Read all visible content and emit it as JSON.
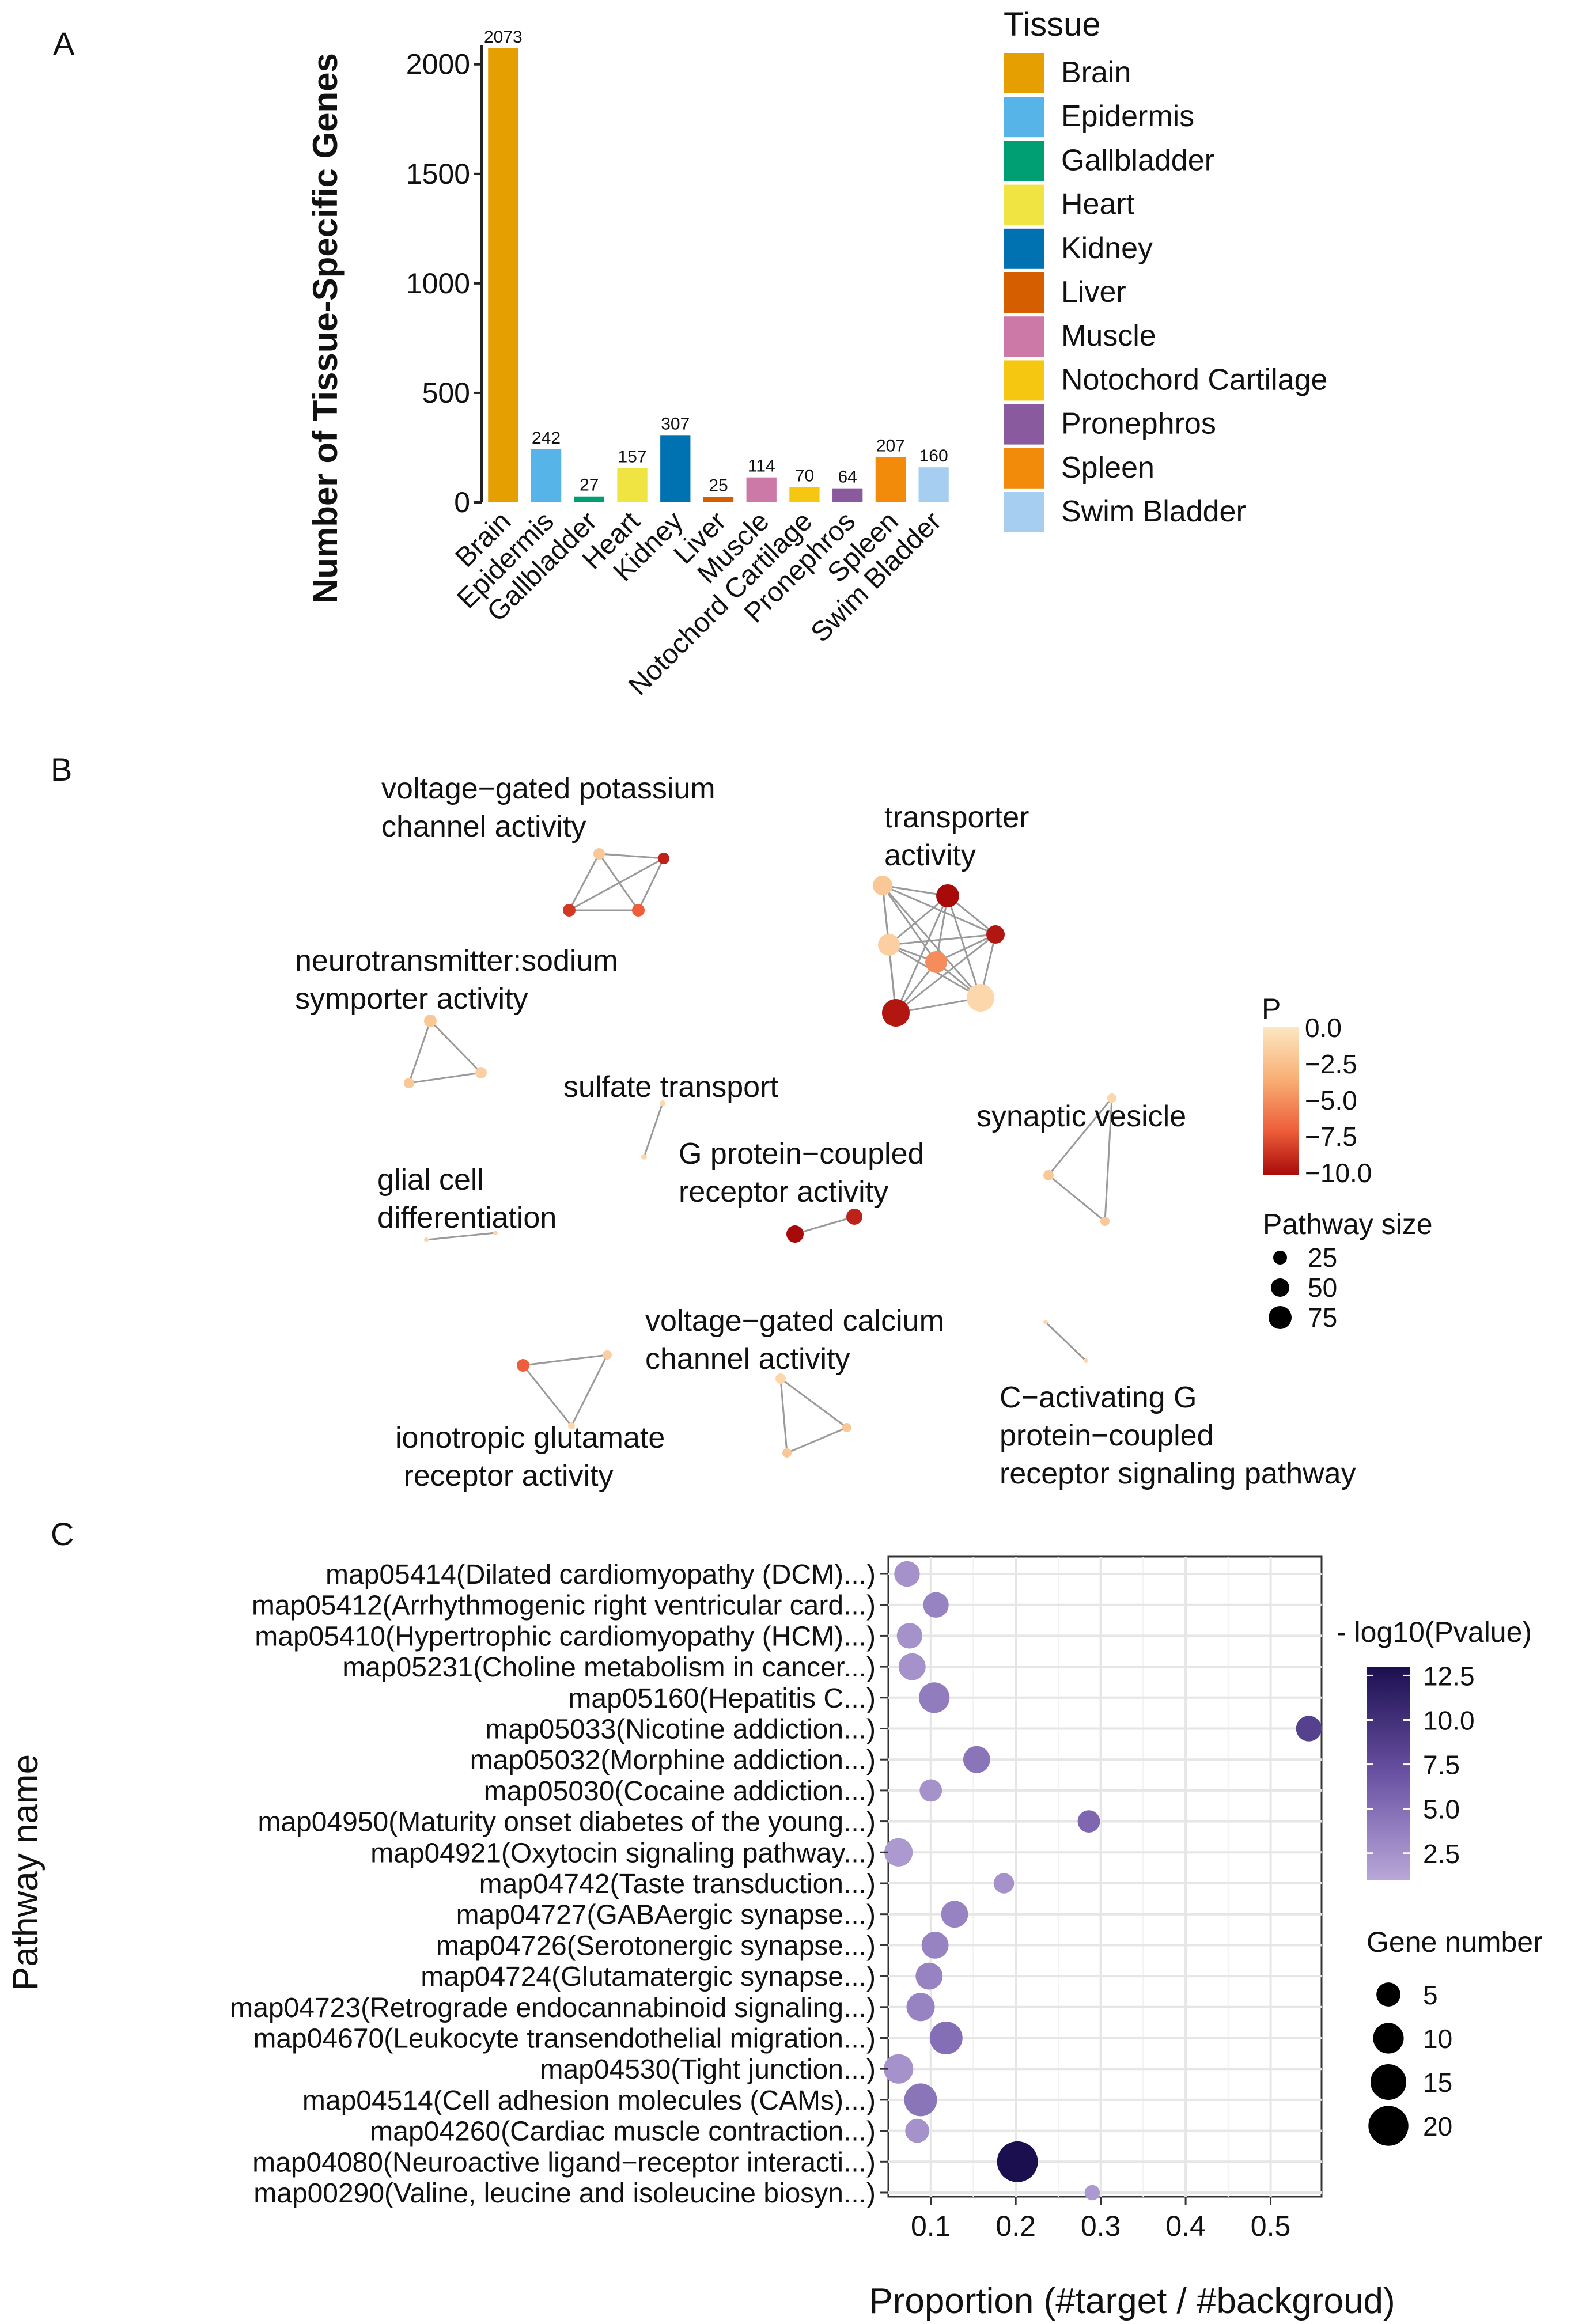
{
  "panels": {
    "a": "A",
    "b": "B",
    "c": "C"
  },
  "chart_data": [
    {
      "type": "bar",
      "panel": "A",
      "ylabel": "Number of Tissue-Specific Genes",
      "ylim": [
        0,
        2073
      ],
      "yticks": [
        0,
        500,
        1000,
        1500,
        2000
      ],
      "categories": [
        "Brain",
        "Epidermis",
        "Gallbladder",
        "Heart",
        "Kidney",
        "Liver",
        "Muscle",
        "Notochord Cartilage",
        "Pronephros",
        "Spleen",
        "Swim Bladder"
      ],
      "values": [
        2073,
        242,
        27,
        157,
        307,
        25,
        114,
        70,
        64,
        207,
        160
      ],
      "colors": [
        "#E69F00",
        "#56B4E9",
        "#009E73",
        "#F0E442",
        "#0072B2",
        "#D55E00",
        "#CC79A7",
        "#F5C710",
        "#8A5A9E",
        "#F28A0A",
        "#A6CEF0"
      ],
      "legend_title": "Tissue",
      "legend_position": "right"
    },
    {
      "type": "network",
      "panel": "B",
      "legend": {
        "color_title": "P",
        "color_ticks": [
          "0.0",
          "−2.5",
          "−5.0",
          "−7.5",
          "−10.0"
        ],
        "color_scale": [
          "#FDE7C3",
          "#F8B074",
          "#EE5E3A",
          "#A80A0A"
        ],
        "size_title": "Pathway size",
        "size_values": [
          25,
          50,
          75
        ]
      },
      "clusters": [
        {
          "label_lines": [
            "voltage−gated potassium",
            "channel activity"
          ],
          "highlight": true
        },
        {
          "label_lines": [
            "transporter",
            "activity"
          ],
          "highlight": true
        },
        {
          "label_lines": [
            "neurotransmitter:sodium",
            "symporter activity"
          ],
          "highlight": false
        },
        {
          "label_lines": [
            "sulfate transport"
          ],
          "highlight": false
        },
        {
          "label_lines": [
            "synaptic vesicle"
          ],
          "highlight": false
        },
        {
          "label_lines": [
            "G protein−coupled",
            "receptor activity"
          ],
          "highlight": true
        },
        {
          "label_lines": [
            "glial cell",
            "differentiation"
          ],
          "highlight": false
        },
        {
          "label_lines": [
            "voltage−gated calcium",
            "channel activity"
          ],
          "highlight": false
        },
        {
          "label_lines": [
            "ionotropic glutamate",
            " receptor activity"
          ],
          "highlight": false
        },
        {
          "label_lines": [
            "C−activating G",
            "protein−coupled",
            "receptor signaling pathway"
          ],
          "highlight": false
        }
      ],
      "nodes": [
        {
          "cluster": 0,
          "p": -2.0,
          "size": 20
        },
        {
          "cluster": 0,
          "p": -9.5,
          "size": 20
        },
        {
          "cluster": 0,
          "p": -7.0,
          "size": 22
        },
        {
          "cluster": 0,
          "p": -8.5,
          "size": 22
        },
        {
          "cluster": 1,
          "p": -2.0,
          "size": 34
        },
        {
          "cluster": 1,
          "p": -10.5,
          "size": 40
        },
        {
          "cluster": 1,
          "p": -10.0,
          "size": 32
        },
        {
          "cluster": 1,
          "p": -1.5,
          "size": 38
        },
        {
          "cluster": 1,
          "p": -5.0,
          "size": 38
        },
        {
          "cluster": 1,
          "p": -1.0,
          "size": 48
        },
        {
          "cluster": 1,
          "p": -10.0,
          "size": 48
        },
        {
          "cluster": 2,
          "p": -2.0,
          "size": 22
        },
        {
          "cluster": 2,
          "p": -1.5,
          "size": 20
        },
        {
          "cluster": 2,
          "p": -2.0,
          "size": 18
        },
        {
          "cluster": 3,
          "p": -1.0,
          "size": 10
        },
        {
          "cluster": 3,
          "p": -1.0,
          "size": 10
        },
        {
          "cluster": 4,
          "p": -1.0,
          "size": 16
        },
        {
          "cluster": 4,
          "p": -2.0,
          "size": 18
        },
        {
          "cluster": 4,
          "p": -2.0,
          "size": 16
        },
        {
          "cluster": 5,
          "p": -10.5,
          "size": 30
        },
        {
          "cluster": 5,
          "p": -9.5,
          "size": 28
        },
        {
          "cluster": 6,
          "p": -1.0,
          "size": 8
        },
        {
          "cluster": 6,
          "p": -1.0,
          "size": 8
        },
        {
          "cluster": 7,
          "p": -1.0,
          "size": 18
        },
        {
          "cluster": 7,
          "p": -2.0,
          "size": 16
        },
        {
          "cluster": 7,
          "p": -2.0,
          "size": 16
        },
        {
          "cluster": 8,
          "p": -7.0,
          "size": 22
        },
        {
          "cluster": 8,
          "p": -1.5,
          "size": 16
        },
        {
          "cluster": 8,
          "p": -1.0,
          "size": 12
        },
        {
          "cluster": 9,
          "p": -1.0,
          "size": 8
        },
        {
          "cluster": 9,
          "p": -1.0,
          "size": 8
        }
      ]
    },
    {
      "type": "scatter",
      "panel": "C",
      "xlabel": "Proportion (#target / #backgroud)",
      "ylabel": "Pathway name",
      "xlim": [
        0.05,
        0.56
      ],
      "xticks": [
        0.1,
        0.2,
        0.3,
        0.4,
        0.5
      ],
      "xticklabels": [
        "0.1",
        "0.2",
        "0.3",
        "0.4",
        "0.5"
      ],
      "color_title": "- log10(Pvalue)",
      "color_ticks": [
        "2.5",
        "5.0",
        "7.5",
        "10.0",
        "12.5"
      ],
      "color_range": [
        1.0,
        13.0
      ],
      "size_title": "Gene number",
      "size_ticks": [
        5,
        10,
        15,
        20
      ],
      "pathways": [
        {
          "name": "map05414(Dilated cardiomyopathy (DCM)...)",
          "x": 0.072,
          "neglogp": 2.5,
          "genes": 6,
          "highlight": false
        },
        {
          "name": "map05412(Arrhythmogenic right ventricular card...)",
          "x": 0.106,
          "neglogp": 3.5,
          "genes": 6,
          "highlight": false
        },
        {
          "name": "map05410(Hypertrophic cardiomyopathy (HCM)...)",
          "x": 0.075,
          "neglogp": 2.5,
          "genes": 6,
          "highlight": false
        },
        {
          "name": "map05231(Choline metabolism in cancer...)",
          "x": 0.078,
          "neglogp": 2.5,
          "genes": 7,
          "highlight": false
        },
        {
          "name": "map05160(Hepatitis C...)",
          "x": 0.104,
          "neglogp": 4.0,
          "genes": 10,
          "highlight": false
        },
        {
          "name": "map05033(Nicotine addiction...)",
          "x": 0.545,
          "neglogp": 8.5,
          "genes": 6,
          "highlight": false
        },
        {
          "name": "map05032(Morphine addiction...)",
          "x": 0.154,
          "neglogp": 4.5,
          "genes": 7,
          "highlight": false
        },
        {
          "name": "map05030(Cocaine addiction...)",
          "x": 0.1,
          "neglogp": 2.5,
          "genes": 4,
          "highlight": false
        },
        {
          "name": "map04950(Maturity onset diabetes of the young...)",
          "x": 0.286,
          "neglogp": 5.5,
          "genes": 4,
          "highlight": false
        },
        {
          "name": "map04921(Oxytocin signaling pathway...)",
          "x": 0.062,
          "neglogp": 2.0,
          "genes": 8,
          "highlight": false
        },
        {
          "name": "map04742(Taste transduction...)",
          "x": 0.186,
          "neglogp": 2.5,
          "genes": 3,
          "highlight": false
        },
        {
          "name": "map04727(GABAergic synapse...)",
          "x": 0.128,
          "neglogp": 3.5,
          "genes": 7,
          "highlight": false
        },
        {
          "name": "map04726(Serotonergic synapse...)",
          "x": 0.105,
          "neglogp": 3.5,
          "genes": 7,
          "highlight": false
        },
        {
          "name": "map04724(Glutamatergic synapse...)",
          "x": 0.098,
          "neglogp": 3.5,
          "genes": 7,
          "highlight": false
        },
        {
          "name": "map04723(Retrograde endocannabinoid signaling...)",
          "x": 0.088,
          "neglogp": 3.5,
          "genes": 8,
          "highlight": false
        },
        {
          "name": "map04670(Leukocyte transendothelial migration...)",
          "x": 0.118,
          "neglogp": 5.0,
          "genes": 12,
          "highlight": true
        },
        {
          "name": "map04530(Tight junction...)",
          "x": 0.062,
          "neglogp": 2.5,
          "genes": 9,
          "highlight": false
        },
        {
          "name": "map04514(Cell adhesion molecules (CAMs)...)",
          "x": 0.088,
          "neglogp": 4.5,
          "genes": 12,
          "highlight": false
        },
        {
          "name": "map04260(Cardiac muscle contraction...)",
          "x": 0.084,
          "neglogp": 2.5,
          "genes": 5,
          "highlight": false
        },
        {
          "name": "map04080(Neuroactive ligand−receptor interacti...)",
          "x": 0.202,
          "neglogp": 13.0,
          "genes": 21,
          "highlight": true
        },
        {
          "name": "map00290(Valine, leucine and isoleucine biosyn...)",
          "x": 0.29,
          "neglogp": 2.0,
          "genes": 1,
          "highlight": false
        }
      ]
    }
  ]
}
